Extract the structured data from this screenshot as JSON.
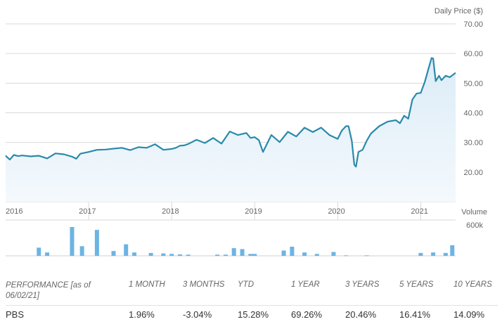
{
  "chart_data": {
    "type": "line",
    "ylabel": "Daily Price ($)",
    "y_ticks": [
      "70.00",
      "60.00",
      "50.00",
      "40.00",
      "30.00",
      "20.00"
    ],
    "y_tick_values": [
      70,
      60,
      50,
      40,
      30,
      20
    ],
    "ylim": [
      10,
      70
    ],
    "x_ticks": [
      "2016",
      "2017",
      "2018",
      "2019",
      "2020",
      "2021"
    ],
    "x_tick_values": [
      2016,
      2017,
      2018,
      2019,
      2020,
      2021
    ],
    "xlim": [
      2016.0,
      2021.42
    ],
    "series": [
      {
        "x": [
          2016.0,
          2016.05,
          2016.1,
          2016.15,
          2016.2,
          2016.3,
          2016.4,
          2016.5,
          2016.6,
          2016.7,
          2016.8,
          2016.85,
          2016.9,
          2017.0,
          2017.1,
          2017.2,
          2017.3,
          2017.4,
          2017.5,
          2017.6,
          2017.7,
          2017.8,
          2017.9,
          2018.0,
          2018.05,
          2018.1,
          2018.15,
          2018.2,
          2018.3,
          2018.4,
          2018.5,
          2018.6,
          2018.7,
          2018.8,
          2018.9,
          2018.95,
          2019.0,
          2019.05,
          2019.1,
          2019.2,
          2019.3,
          2019.4,
          2019.5,
          2019.6,
          2019.7,
          2019.8,
          2019.9,
          2020.0,
          2020.05,
          2020.1,
          2020.13,
          2020.17,
          2020.2,
          2020.22,
          2020.25,
          2020.3,
          2020.35,
          2020.4,
          2020.5,
          2020.6,
          2020.7,
          2020.75,
          2020.8,
          2020.85,
          2020.9,
          2020.95,
          2021.0,
          2021.05,
          2021.1,
          2021.13,
          2021.15,
          2021.18,
          2021.22,
          2021.25,
          2021.3,
          2021.35,
          2021.42
        ],
        "values": [
          25.5,
          24.2,
          25.8,
          25.4,
          25.6,
          25.3,
          25.5,
          24.6,
          26.3,
          26.0,
          25.2,
          24.5,
          26.2,
          26.8,
          27.5,
          27.6,
          27.9,
          28.2,
          27.4,
          28.4,
          28.2,
          29.4,
          27.5,
          27.8,
          28.2,
          28.9,
          29.0,
          29.5,
          30.9,
          29.8,
          31.5,
          29.6,
          33.7,
          32.5,
          33.2,
          31.5,
          31.8,
          30.8,
          26.8,
          32.5,
          30.1,
          33.6,
          32.0,
          35.0,
          33.5,
          35.0,
          32.5,
          31.2,
          34.0,
          35.5,
          35.5,
          30.5,
          22.5,
          21.8,
          26.8,
          27.5,
          30.6,
          33.0,
          35.5,
          37.0,
          37.5,
          36.5,
          39.0,
          38.0,
          44.5,
          46.5,
          46.7,
          50.5,
          55.5,
          58.5,
          58.3,
          50.7,
          52.5,
          51.0,
          52.5,
          52.0,
          53.5
        ]
      }
    ],
    "volume_label": "Volume",
    "volume_tick": "600k",
    "volume_max": 600000,
    "volume": {
      "x": [
        2016.4,
        2016.5,
        2016.8,
        2016.92,
        2017.1,
        2017.3,
        2017.45,
        2017.55,
        2017.75,
        2017.9,
        2018.0,
        2018.1,
        2018.2,
        2018.55,
        2018.65,
        2018.75,
        2018.85,
        2018.95,
        2019.0,
        2019.35,
        2019.45,
        2019.6,
        2019.75,
        2019.95,
        2020.1,
        2020.35,
        2021.0,
        2021.15,
        2021.3,
        2021.38
      ],
      "values": [
        170000,
        70000,
        600000,
        200000,
        540000,
        100000,
        240000,
        70000,
        60000,
        50000,
        40000,
        30000,
        25000,
        25000,
        25000,
        160000,
        140000,
        40000,
        40000,
        110000,
        190000,
        70000,
        40000,
        80000,
        10000,
        10000,
        60000,
        70000,
        60000,
        220000
      ]
    }
  },
  "performance": {
    "header_label": "PERFORMANCE [as of 06/02/21]",
    "periods": [
      "1 MONTH",
      "3 MONTHS",
      "YTD",
      "1 YEAR",
      "3 YEARS",
      "5 YEARS",
      "10 YEARS"
    ],
    "ticker": "PBS",
    "values": [
      "1.96%",
      "-3.04%",
      "15.28%",
      "69.26%",
      "20.46%",
      "16.41%",
      "14.09%"
    ]
  },
  "colors": {
    "line": "#2a8aaa",
    "area_top": "#dcecf7",
    "area_bottom": "#f4f9fd",
    "volume_bar": "#6cb4e2",
    "grid": "#d9d9d9"
  }
}
